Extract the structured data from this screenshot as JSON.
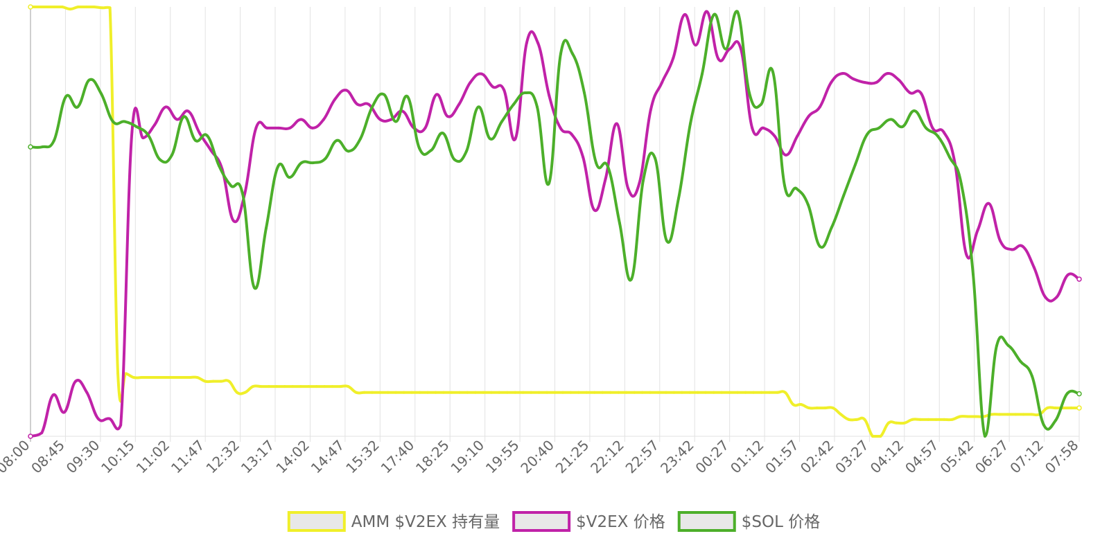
{
  "chart_data": {
    "type": "line",
    "title": "",
    "xlabel": "",
    "ylabel": "",
    "grid": true,
    "legend_position": "bottom-center",
    "tick_labels": [
      "08:00",
      "08:45",
      "09:30",
      "10:15",
      "11:02",
      "11:47",
      "12:32",
      "13:17",
      "14:02",
      "14:47",
      "15:32",
      "17:40",
      "18:25",
      "19:10",
      "19:55",
      "20:40",
      "21:25",
      "22:12",
      "22:57",
      "23:42",
      "00:27",
      "01:12",
      "01:57",
      "02:42",
      "03:27",
      "04:12",
      "04:57",
      "05:42",
      "06:27",
      "07:12",
      "07:58"
    ],
    "ylim": [
      0,
      100
    ],
    "series": [
      {
        "name": "AMM $V2EX 持有量",
        "color": "#f0ef2a",
        "fill": "#e8e8e8",
        "values": [
          100,
          100,
          100,
          100,
          100,
          99.5,
          100,
          100,
          100,
          99.8,
          99.8,
          14.6,
          14.6,
          13.7,
          13.7,
          13.7,
          13.7,
          13.7,
          13.7,
          13.7,
          13.7,
          13.7,
          12.8,
          12.8,
          12.8,
          12.8,
          10.2,
          10.2,
          11.6,
          11.6,
          11.6,
          11.6,
          11.6,
          11.6,
          11.6,
          11.6,
          11.6,
          11.6,
          11.6,
          11.6,
          11.6,
          10.2,
          10.2,
          10.2,
          10.2,
          10.2,
          10.2,
          10.2,
          10.2,
          10.2,
          10.2,
          10.2,
          10.2,
          10.2,
          10.2,
          10.2,
          10.2,
          10.2,
          10.2,
          10.2,
          10.2,
          10.2,
          10.2,
          10.2,
          10.2,
          10.2,
          10.2,
          10.2,
          10.2,
          10.2,
          10.2,
          10.2,
          10.2,
          10.2,
          10.2,
          10.2,
          10.2,
          10.2,
          10.2,
          10.2,
          10.2,
          10.2,
          10.2,
          10.2,
          10.2,
          10.2,
          10.2,
          10.2,
          10.2,
          10.2,
          10.2,
          10.2,
          10.2,
          10.2,
          10.2,
          10.2,
          7.4,
          7.4,
          6.6,
          6.6,
          6.6,
          6.6,
          5.1,
          3.9,
          3.9,
          3.9,
          0,
          0,
          3.1,
          3.1,
          3.1,
          3.9,
          3.9,
          3.9,
          3.9,
          3.9,
          3.9,
          4.6,
          4.6,
          4.6,
          4.6,
          5.1,
          5.1,
          5.1,
          5.1,
          5.1,
          5.1,
          5.1,
          6.6,
          6.6,
          6.6,
          6.6,
          6.6
        ]
      },
      {
        "name": "$V2EX 价格",
        "color": "#c022a8",
        "fill": "#e8e8e8",
        "values": [
          0,
          0.8,
          9.6,
          5.6,
          12.8,
          10.2,
          4.1,
          4.1,
          2.6,
          70.9,
          69.5,
          72.5,
          76.7,
          73.8,
          75.7,
          70.6,
          66.6,
          62.2,
          50.2,
          56.5,
          71.8,
          71.8,
          71.8,
          71.8,
          73.8,
          71.8,
          73.8,
          78.5,
          80.6,
          77.3,
          77.3,
          73.8,
          73.8,
          75.7,
          71.8,
          71.8,
          79.6,
          74.5,
          77.3,
          82.4,
          84.4,
          81.4,
          80.6,
          69.3,
          91.6,
          91.6,
          79.3,
          71.8,
          70.3,
          65.0,
          52.7,
          60.0,
          72.8,
          57.7,
          59.0,
          76.0,
          82.4,
          88.1,
          98.2,
          91.1,
          98.9,
          87.9,
          90.2,
          90.2,
          71.8,
          71.8,
          69.9,
          65.5,
          69.9,
          74.5,
          76.7,
          82.4,
          84.5,
          83.2,
          82.4,
          82.4,
          84.5,
          83.0,
          80.0,
          79.8,
          71.8,
          70.8,
          63.3,
          42.3,
          48.0,
          54.2,
          45.5,
          43.5,
          44.2,
          39.3,
          32.4,
          32.4,
          37.6,
          36.6
        ]
      },
      {
        "name": "$SOL 价格",
        "color": "#4caf2a",
        "fill": "#e8e8e8",
        "values": [
          67.4,
          67.4,
          68.9,
          79.1,
          76.7,
          83.0,
          79.8,
          73.3,
          73.3,
          72.1,
          70.1,
          64.4,
          65.5,
          74.4,
          68.9,
          70.0,
          63.0,
          58.4,
          56.5,
          34.6,
          48.5,
          62.8,
          60.3,
          63.7,
          63.7,
          64.6,
          68.9,
          66.4,
          69.3,
          76.7,
          79.6,
          73.3,
          79.1,
          67.1,
          66.6,
          70.6,
          64.4,
          66.4,
          76.7,
          69.3,
          73.3,
          77.3,
          80.0,
          76.7,
          58.9,
          89.1,
          89.1,
          80.0,
          63.7,
          62.8,
          49.6,
          36.6,
          59.6,
          64.8,
          45.5,
          55.4,
          72.8,
          84.4,
          98.2,
          90.2,
          98.9,
          80.0,
          77.3,
          84.9,
          58.4,
          57.7,
          53.9,
          44.2,
          48.7,
          56.0,
          63.3,
          70.3,
          71.8,
          73.8,
          72.1,
          75.8,
          71.8,
          69.9,
          65.0,
          58.7,
          37.7,
          0.0,
          21.1,
          21.1,
          17.5,
          14.0,
          2.6,
          3.7,
          10.0,
          9.9
        ]
      }
    ]
  }
}
